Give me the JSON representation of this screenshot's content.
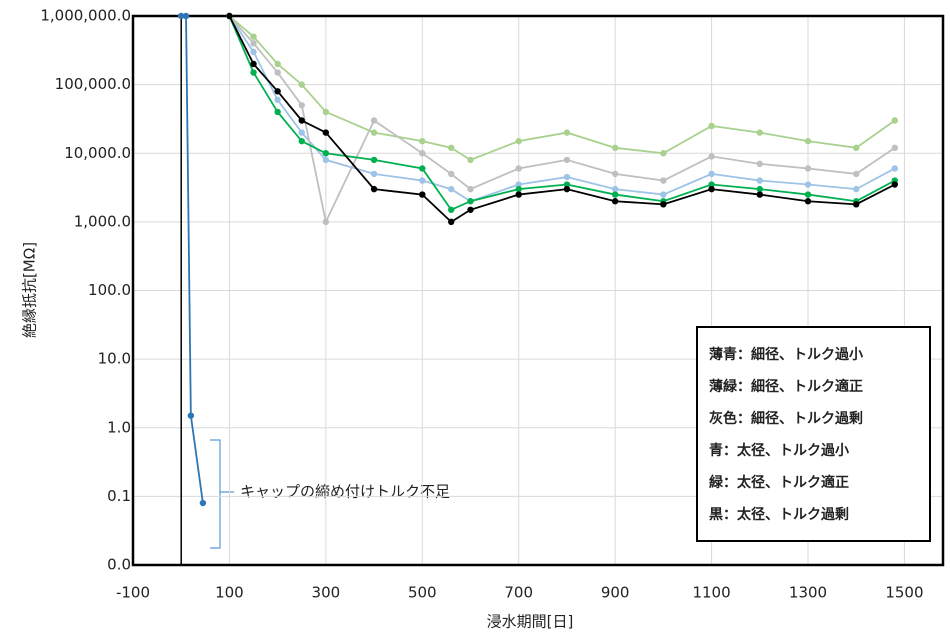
{
  "chart_data": {
    "type": "line",
    "x_label": "浸水期間[日]",
    "y_label": "絶縁抵抗[MΩ]",
    "annotation": "キャップの締め付けトルク不足",
    "log_scale": "y",
    "grid": true,
    "legend": "lower right",
    "x": [
      0,
      10,
      20,
      45,
      100,
      150,
      200,
      250,
      300,
      400,
      500,
      560,
      600,
      700,
      800,
      900,
      1000,
      1100,
      1200,
      1300,
      1400,
      1480
    ],
    "xlim": [
      -100,
      1580
    ],
    "xticks": [
      -100,
      100,
      300,
      500,
      700,
      900,
      1100,
      1300,
      1500
    ],
    "ylim": [
      0.01,
      1000000
    ],
    "yticks": [
      {
        "value": 0.01,
        "label": "0.0"
      },
      0.1,
      {
        "value": 1,
        "label": "1.0"
      },
      {
        "value": 10,
        "label": "10.0"
      },
      {
        "value": 100,
        "label": "100.0"
      },
      {
        "value": 1000,
        "label": "1,000.0"
      },
      {
        "value": 10000,
        "label": "10,000.0"
      },
      {
        "value": 100000,
        "label": "100,000.0"
      },
      {
        "value": 1000000,
        "label": "1,000,000.0"
      }
    ],
    "series": [
      {
        "name": "薄青：細径、トルク過小",
        "color": "#9dc3e6",
        "values": [
          null,
          null,
          null,
          null,
          1000000,
          300000,
          60000,
          20000,
          8000,
          5000,
          4000,
          3000,
          2000,
          3500,
          4500,
          3000,
          2500,
          5000,
          4000,
          3500,
          3000,
          6000
        ]
      },
      {
        "name": "薄緑：細径、トルク適正",
        "color": "#a9d18e",
        "values": [
          null,
          null,
          null,
          null,
          1000000,
          500000,
          200000,
          100000,
          40000,
          20000,
          15000,
          12000,
          8000,
          15000,
          20000,
          12000,
          10000,
          25000,
          20000,
          15000,
          12000,
          30000
        ]
      },
      {
        "name": "灰色：細径、トルク過剰",
        "color": "#bfbfbf",
        "values": [
          null,
          null,
          null,
          null,
          1000000,
          400000,
          150000,
          50000,
          1000,
          30000,
          10000,
          5000,
          3000,
          6000,
          8000,
          5000,
          4000,
          9000,
          7000,
          6000,
          5000,
          12000
        ]
      },
      {
        "name": "青：太径、トルク過小",
        "color": "#2e75b6",
        "values": [
          1000000,
          1000000,
          1.5,
          0.08,
          null,
          null,
          null,
          null,
          null,
          null,
          null,
          null,
          null,
          null,
          null,
          null,
          null,
          null,
          null,
          null,
          null,
          null
        ]
      },
      {
        "name": "緑：太径、トルク適正",
        "color": "#00b050",
        "values": [
          null,
          null,
          null,
          null,
          1000000,
          150000,
          40000,
          15000,
          10000,
          8000,
          6000,
          1500,
          2000,
          3000,
          3500,
          2500,
          2000,
          3500,
          3000,
          2500,
          2000,
          4000
        ]
      },
      {
        "name": "黒：太径、トルク過剰",
        "color": "#000000",
        "values": [
          null,
          null,
          null,
          null,
          1000000,
          200000,
          80000,
          30000,
          20000,
          3000,
          2500,
          1000,
          1500,
          2500,
          3000,
          2000,
          1800,
          3000,
          2500,
          2000,
          1800,
          3500
        ]
      }
    ]
  }
}
